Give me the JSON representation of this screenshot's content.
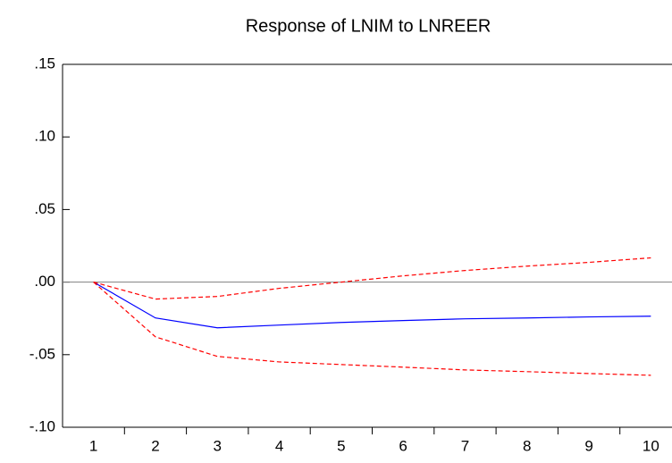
{
  "chart_data": {
    "type": "line",
    "title": "Response of LNIM to LNREER",
    "categories": [
      "1",
      "2",
      "3",
      "4",
      "5",
      "6",
      "7",
      "8",
      "9",
      "10"
    ],
    "series": [
      {
        "color": "#0000ff",
        "dash": false,
        "values": [
          0,
          -0.0247,
          -0.0315,
          -0.0296,
          -0.0278,
          -0.0265,
          -0.0253,
          -0.0247,
          -0.024,
          -0.0235
        ]
      },
      {
        "color": "#ff0000",
        "dash": true,
        "values": [
          0,
          -0.0117,
          -0.0099,
          -0.0043,
          0.0,
          0.0043,
          0.008,
          0.011,
          0.0136,
          0.0167
        ]
      },
      {
        "color": "#ff0000",
        "dash": true,
        "values": [
          0,
          -0.0377,
          -0.0512,
          -0.055,
          -0.0568,
          -0.0586,
          -0.0605,
          -0.0617,
          -0.063,
          -0.0642
        ]
      }
    ],
    "ylim": [
      -0.1,
      0.15
    ],
    "yticks": [
      {
        "value": -0.1,
        "label": "-.10"
      },
      {
        "value": -0.05,
        "label": "-.05"
      },
      {
        "value": 0,
        "label": ".00"
      },
      {
        "value": 0.05,
        "label": ".05"
      },
      {
        "value": 0.1,
        "label": ".10"
      },
      {
        "value": 0.15,
        "label": ".15"
      }
    ],
    "zero_line": true
  }
}
